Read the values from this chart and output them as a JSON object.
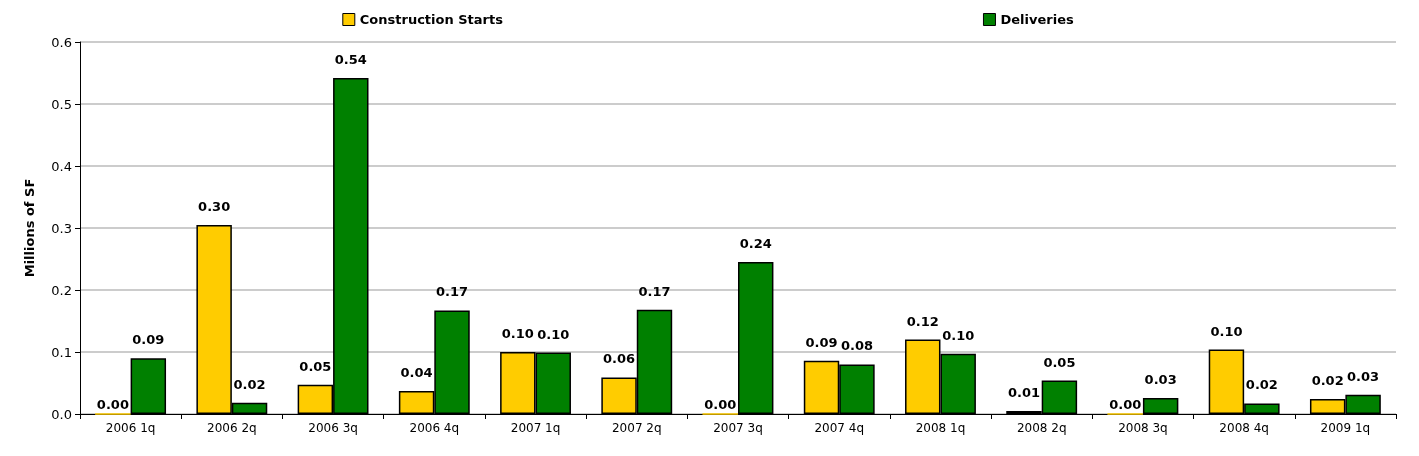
{
  "chart_data": {
    "type": "bar",
    "ylabel": "Millions of SF",
    "categories": [
      "2006 1q",
      "2006 2q",
      "2006 3q",
      "2006 4q",
      "2007 1q",
      "2007 2q",
      "2007 3q",
      "2007 4q",
      "2008 1q",
      "2008 2q",
      "2008 3q",
      "2008 4q",
      "2009 1q"
    ],
    "series": [
      {
        "name": "Construction Starts",
        "color": "#ffcc00",
        "values": [
          0.0,
          0.305,
          0.047,
          0.037,
          0.1,
          0.059,
          0.0,
          0.086,
          0.12,
          0.005,
          0.0,
          0.104,
          0.024
        ],
        "value_labels": [
          "0.00",
          "0.30",
          "0.05",
          "0.04",
          "0.10",
          "0.06",
          "0.00",
          "0.09",
          "0.12",
          "0.01",
          "0.00",
          "0.10",
          "0.02"
        ]
      },
      {
        "name": "Deliveries",
        "color": "#008000",
        "values": [
          0.09,
          0.018,
          0.542,
          0.167,
          0.099,
          0.168,
          0.245,
          0.08,
          0.097,
          0.054,
          0.026,
          0.017,
          0.031
        ],
        "value_labels": [
          "0.09",
          "0.02",
          "0.54",
          "0.17",
          "0.10",
          "0.17",
          "0.24",
          "0.08",
          "0.10",
          "0.05",
          "0.03",
          "0.02",
          "0.03"
        ]
      }
    ],
    "ylim": [
      0,
      0.6
    ],
    "yticks": [
      {
        "value": 0,
        "label": "0.0"
      },
      {
        "value": 0.1,
        "label": "0.1"
      },
      {
        "value": 0.2,
        "label": "0.2"
      },
      {
        "value": 0.3,
        "label": "0.3"
      },
      {
        "value": 0.4,
        "label": "0.4"
      },
      {
        "value": 0.5,
        "label": "0.5"
      },
      {
        "value": 0.6,
        "label": "0.6"
      }
    ],
    "grid": "y",
    "legend": "top"
  }
}
